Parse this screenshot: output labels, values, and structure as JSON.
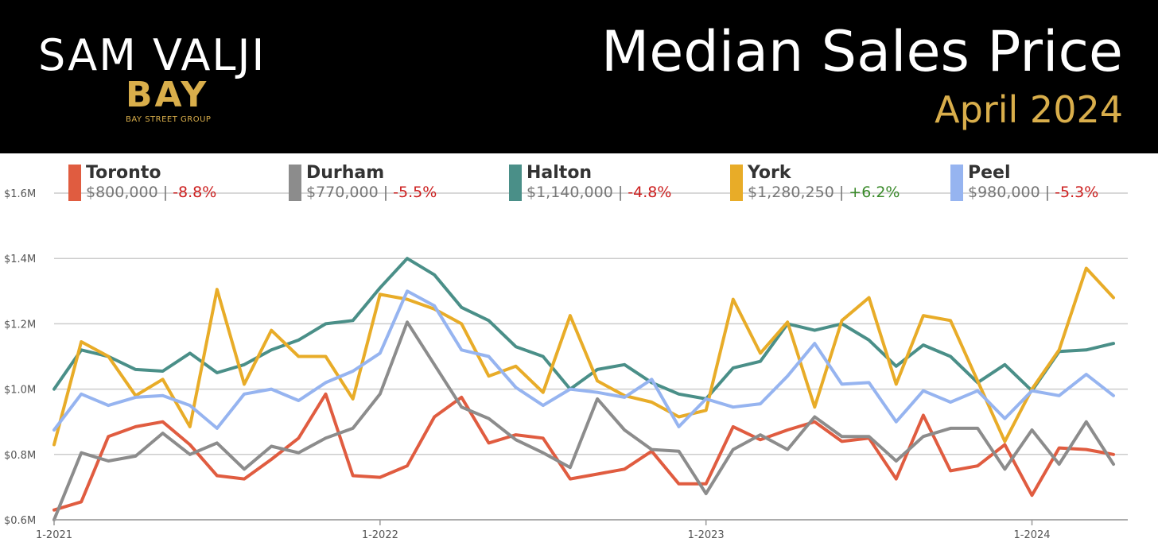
{
  "header": {
    "brand_name": "SAM VALJI",
    "brand_logo": "BAY",
    "brand_sub": "BAY STREET GROUP",
    "title": "Median Sales Price",
    "subtitle": "April 2024",
    "accent_color": "#d9ae4b"
  },
  "legend": [
    {
      "name": "Toronto",
      "price": "$800,000",
      "change": "-8.8%",
      "color": "#e05c40",
      "change_color": "#cc1f1f"
    },
    {
      "name": "Durham",
      "price": "$770,000",
      "change": "-5.5%",
      "color": "#8c8c8c",
      "change_color": "#cc1f1f"
    },
    {
      "name": "Halton",
      "price": "$1,140,000",
      "change": "-4.8%",
      "color": "#4a8f88",
      "change_color": "#cc1f1f"
    },
    {
      "name": "York",
      "price": "$1,280,250",
      "change": "+6.2%",
      "color": "#e8ac28",
      "change_color": "#3a8a2a"
    },
    {
      "name": "Peel",
      "price": "$980,000",
      "change": "-5.3%",
      "color": "#96b4f0",
      "change_color": "#cc1f1f"
    }
  ],
  "chart_data": {
    "type": "line",
    "ylim": [
      600000,
      1600000
    ],
    "y_ticks": [
      {
        "value": 600000,
        "label": "$0.6M"
      },
      {
        "value": 800000,
        "label": "$0.8M"
      },
      {
        "value": 1000000,
        "label": "$1.0M"
      },
      {
        "value": 1200000,
        "label": "$1.2M"
      },
      {
        "value": 1400000,
        "label": "$1.4M"
      },
      {
        "value": 1600000,
        "label": "$1.6M"
      }
    ],
    "x_start": "2021-01",
    "x_ticks": [
      {
        "index": 0,
        "label": "1-2021"
      },
      {
        "index": 12,
        "label": "1-2022"
      },
      {
        "index": 24,
        "label": "1-2023"
      },
      {
        "index": 36,
        "label": "1-2024"
      }
    ],
    "series": [
      {
        "name": "Toronto",
        "color": "#e05c40",
        "values": [
          630000,
          655000,
          855000,
          885000,
          900000,
          830000,
          735000,
          725000,
          785000,
          850000,
          985000,
          735000,
          730000,
          765000,
          915000,
          975000,
          835000,
          860000,
          850000,
          725000,
          740000,
          755000,
          810000,
          710000,
          710000,
          885000,
          845000,
          875000,
          900000,
          840000,
          850000,
          725000,
          920000,
          750000,
          765000,
          830000,
          675000,
          820000,
          815000,
          800000
        ]
      },
      {
        "name": "Durham",
        "color": "#8c8c8c",
        "values": [
          600000,
          805000,
          780000,
          795000,
          865000,
          800000,
          835000,
          755000,
          825000,
          805000,
          850000,
          880000,
          985000,
          1205000,
          1075000,
          945000,
          910000,
          845000,
          805000,
          760000,
          970000,
          875000,
          815000,
          810000,
          680000,
          815000,
          860000,
          815000,
          915000,
          855000,
          855000,
          780000,
          855000,
          880000,
          880000,
          755000,
          875000,
          770000,
          900000,
          770000
        ]
      },
      {
        "name": "Halton",
        "color": "#4a8f88",
        "values": [
          1000000,
          1120000,
          1100000,
          1060000,
          1055000,
          1110000,
          1050000,
          1075000,
          1120000,
          1150000,
          1200000,
          1210000,
          1310000,
          1400000,
          1350000,
          1250000,
          1210000,
          1130000,
          1100000,
          1000000,
          1060000,
          1075000,
          1020000,
          985000,
          970000,
          1065000,
          1085000,
          1200000,
          1180000,
          1200000,
          1150000,
          1070000,
          1135000,
          1100000,
          1020000,
          1075000,
          995000,
          1115000,
          1120000,
          1140000
        ]
      },
      {
        "name": "York",
        "color": "#e8ac28",
        "values": [
          830000,
          1145000,
          1100000,
          980000,
          1030000,
          885000,
          1305000,
          1015000,
          1180000,
          1100000,
          1100000,
          970000,
          1290000,
          1275000,
          1245000,
          1200000,
          1040000,
          1070000,
          990000,
          1225000,
          1025000,
          980000,
          960000,
          915000,
          935000,
          1275000,
          1110000,
          1205000,
          945000,
          1210000,
          1280000,
          1015000,
          1225000,
          1210000,
          1025000,
          840000,
          1000000,
          1120000,
          1370000,
          1280000
        ]
      },
      {
        "name": "Peel",
        "color": "#96b4f0",
        "values": [
          875000,
          985000,
          950000,
          975000,
          980000,
          950000,
          880000,
          985000,
          1000000,
          965000,
          1020000,
          1055000,
          1110000,
          1300000,
          1255000,
          1120000,
          1100000,
          1005000,
          950000,
          1000000,
          990000,
          975000,
          1030000,
          885000,
          970000,
          945000,
          955000,
          1040000,
          1140000,
          1015000,
          1020000,
          900000,
          995000,
          960000,
          995000,
          910000,
          995000,
          980000,
          1045000,
          980000
        ]
      }
    ]
  }
}
